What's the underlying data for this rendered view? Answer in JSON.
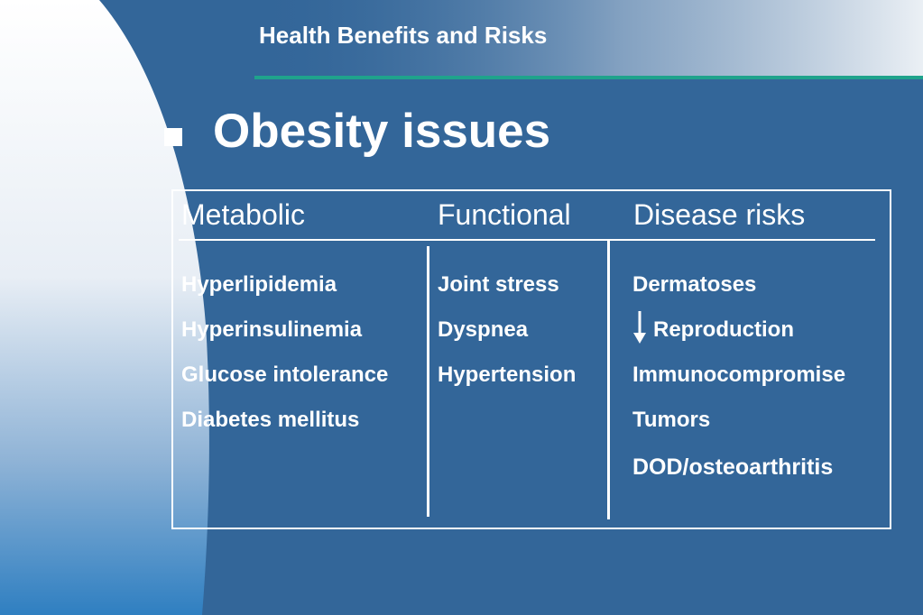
{
  "header": {
    "title": "Health Benefits and Risks"
  },
  "slide": {
    "heading": "Obesity issues"
  },
  "table": {
    "columns": [
      "Metabolic",
      "Functional",
      "Disease risks"
    ],
    "metabolic": [
      "Hyperlipidemia",
      "Hyperinsulinemia",
      "Glucose intolerance",
      "Diabetes mellitus"
    ],
    "functional": [
      "Joint stress",
      "Dyspnea",
      "Hypertension"
    ],
    "disease_risks": [
      "Dermatoses",
      "Reproduction",
      "Immunocompromise",
      "Tumors",
      "DOD/osteoarthritis"
    ]
  },
  "icons": {
    "bullet": "square-bullet-icon",
    "reproduction_marker": "arrow-down-icon"
  },
  "colors": {
    "background": "#336699",
    "accent_rule": "#1fa38c",
    "text": "#ffffff"
  }
}
